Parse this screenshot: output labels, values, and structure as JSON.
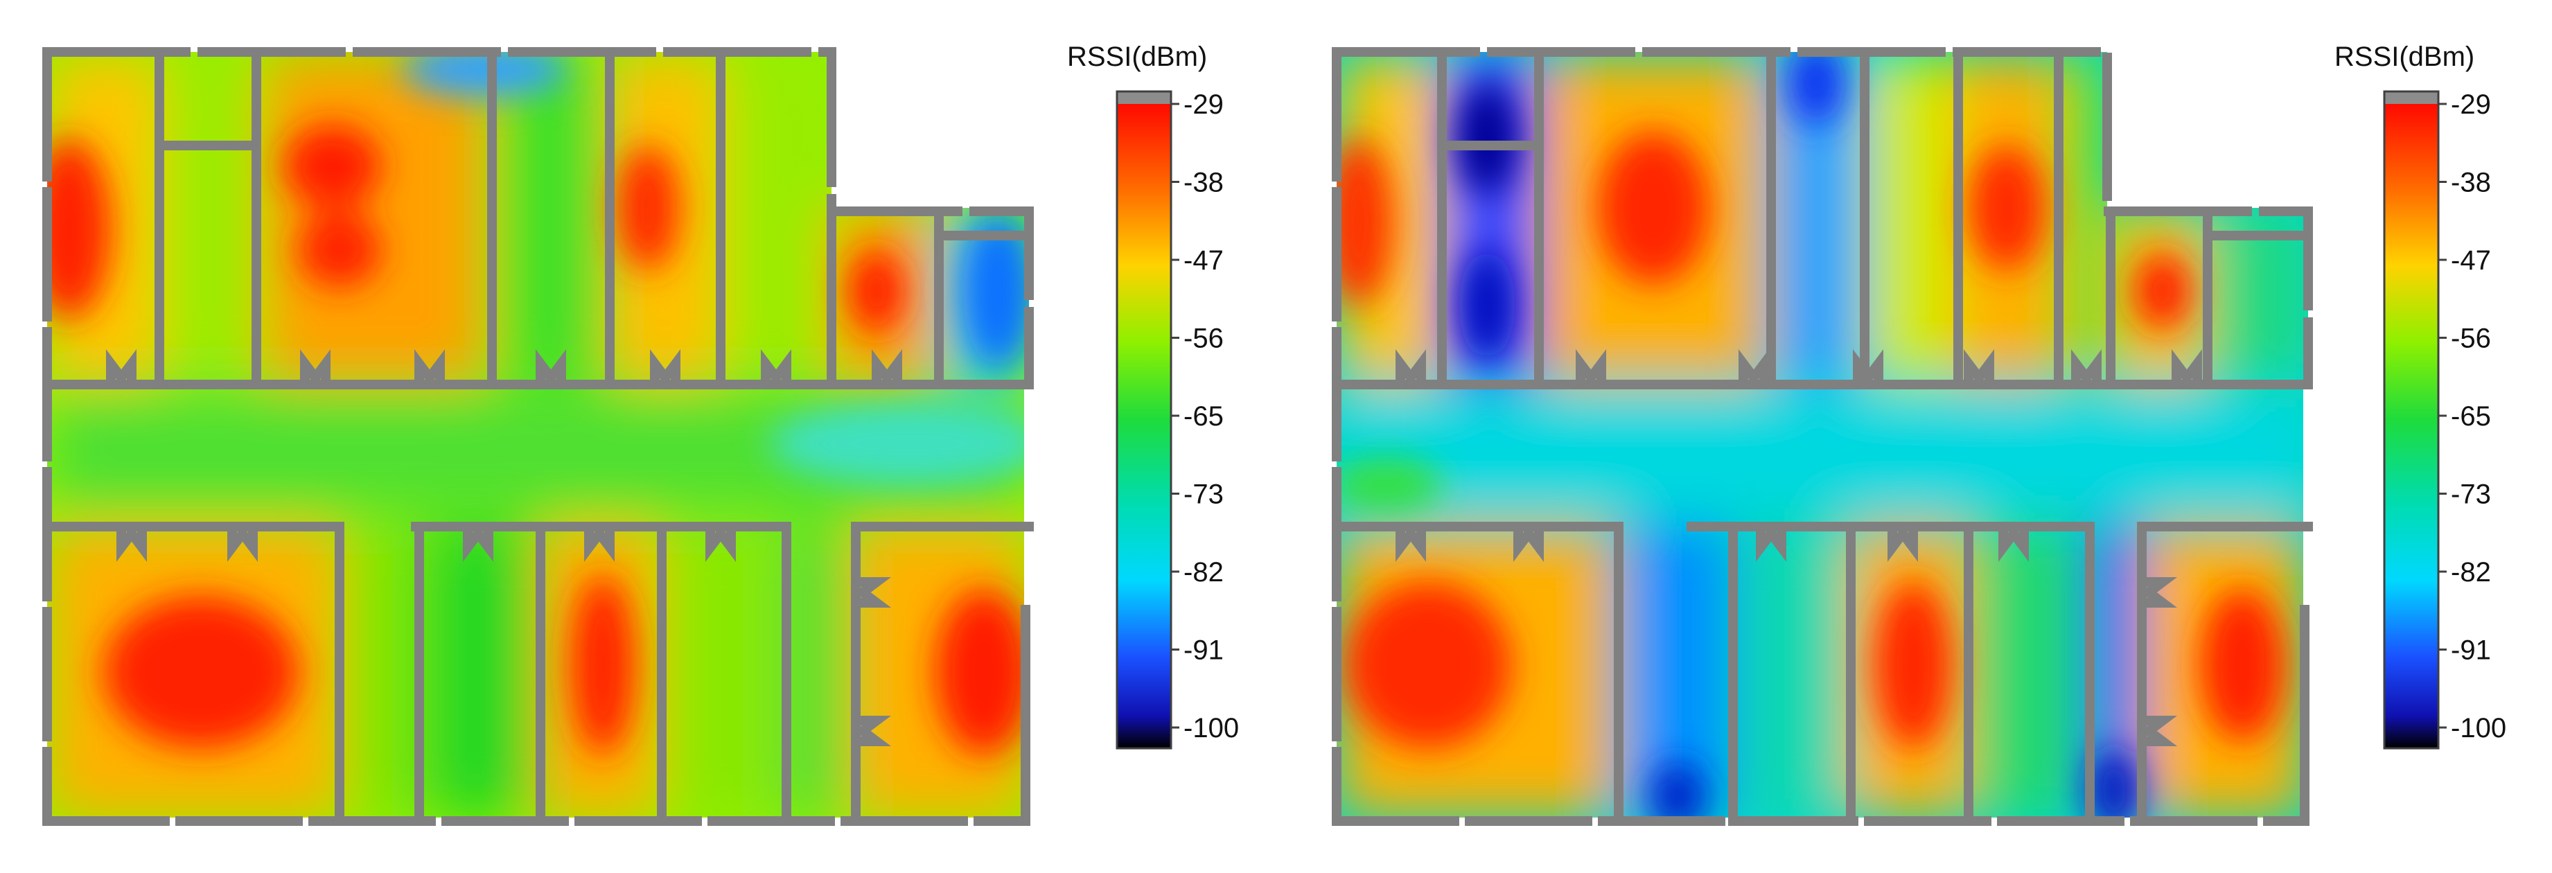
{
  "colorbar": {
    "title": "RSSI(dBm)",
    "ticks": [
      "-29",
      "-38",
      "-47",
      "-56",
      "-65",
      "-73",
      "-82",
      "-91",
      "-100"
    ],
    "top_cap_color": "#8c8c8c",
    "gradient": [
      {
        "offset": 0.0,
        "color": "#ff0a00"
      },
      {
        "offset": 0.13,
        "color": "#ff6a00"
      },
      {
        "offset": 0.25,
        "color": "#ffd200"
      },
      {
        "offset": 0.37,
        "color": "#8ef000"
      },
      {
        "offset": 0.49,
        "color": "#1edc3c"
      },
      {
        "offset": 0.62,
        "color": "#00dcb0"
      },
      {
        "offset": 0.74,
        "color": "#00d8ff"
      },
      {
        "offset": 0.86,
        "color": "#1a50ff"
      },
      {
        "offset": 0.95,
        "color": "#1010b0"
      },
      {
        "offset": 1.0,
        "color": "#000000"
      }
    ]
  },
  "wall_color": "#808080",
  "panels": [
    {
      "id": "left",
      "variant": "strong-coverage"
    },
    {
      "id": "right",
      "variant": "weak-coverage"
    }
  ]
}
